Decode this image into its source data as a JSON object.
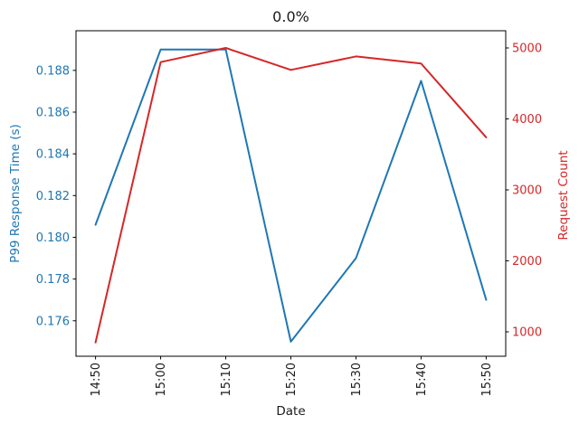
{
  "chart_data": {
    "type": "line",
    "title": "0.0%",
    "xlabel": "Date",
    "categories": [
      "14:50",
      "15:00",
      "15:10",
      "15:20",
      "15:30",
      "15:40",
      "15:50"
    ],
    "series": [
      {
        "name": "P99 Response Time (s)",
        "axis": "left",
        "color": "#1f77b4",
        "values": [
          0.1806,
          0.189,
          0.189,
          0.175,
          0.179,
          0.1875,
          0.177
        ]
      },
      {
        "name": "Request Count",
        "axis": "right",
        "color": "#d62728",
        "values": [
          850,
          4800,
          5000,
          4690,
          4880,
          4780,
          3740
        ]
      }
    ],
    "axes": {
      "left": {
        "label": "P99 Response Time (s)",
        "color": "#1f77b4",
        "tick_values": [
          0.176,
          0.178,
          0.18,
          0.182,
          0.184,
          0.186,
          0.188
        ],
        "tick_labels": [
          "0.176",
          "0.178",
          "0.180",
          "0.182",
          "0.184",
          "0.186",
          "0.188"
        ],
        "ylim": [
          0.1743,
          0.1899
        ]
      },
      "right": {
        "label": "Request Count",
        "color": "#d62728",
        "tick_values": [
          1000,
          2000,
          3000,
          4000,
          5000
        ],
        "tick_labels": [
          "1000",
          "2000",
          "3000",
          "4000",
          "5000"
        ],
        "ylim": [
          656,
          5242
        ]
      },
      "x": {
        "label": "Date",
        "tick_labels": [
          "14:50",
          "15:00",
          "15:10",
          "15:20",
          "15:30",
          "15:40",
          "15:50"
        ],
        "tick_rotation_deg": 90,
        "xlim_index": [
          -0.3,
          6.3
        ]
      }
    },
    "grid": false,
    "legend": "none",
    "text_color": "#1a1a1a",
    "spine_color": "#000000"
  }
}
